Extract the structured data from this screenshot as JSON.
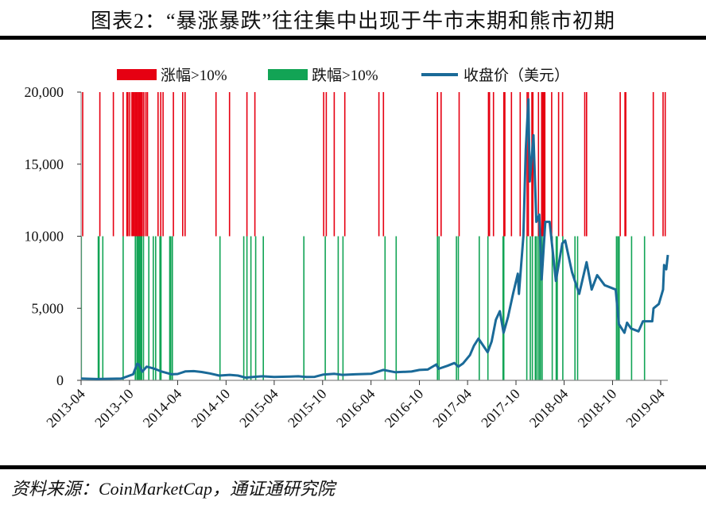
{
  "title": "图表2：“暴涨暴跌”往往集中出现于牛市末期和熊市初期",
  "source": "资料来源：CoinMarketCap，通证通研究院",
  "chart_data": {
    "type": "bar+line",
    "title": "",
    "xlabel": "",
    "ylabel": "",
    "ylim": [
      0,
      20000
    ],
    "xlim": [
      "2013-04-01",
      "2019-05-01"
    ],
    "grid": false,
    "legend_position": "top",
    "y_ticks": [
      "0",
      "5,000",
      "10,000",
      "15,000",
      "20,000"
    ],
    "y_tick_values": [
      0,
      5000,
      10000,
      15000,
      20000
    ],
    "x_ticks": [
      "2013-04",
      "2013-10",
      "2014-04",
      "2014-10",
      "2015-04",
      "2015-10",
      "2016-04",
      "2016-10",
      "2017-04",
      "2017-10",
      "2018-04",
      "2018-10",
      "2019-04"
    ],
    "colors": {
      "rise": "#e60012",
      "fall": "#12a455",
      "price": "#1a6a98"
    },
    "series": [
      {
        "name": "涨幅>10%",
        "type": "event-bar",
        "band": [
          10000,
          20000
        ],
        "dates": [
          "2013-04-07",
          "2013-06-11",
          "2013-08-01",
          "2013-09-07",
          "2013-09-21",
          "2013-09-25",
          "2013-10-02",
          "2013-10-10",
          "2013-10-14",
          "2013-10-18",
          "2013-10-22",
          "2013-10-26",
          "2013-10-30",
          "2013-11-03",
          "2013-11-07",
          "2013-11-11",
          "2013-11-15",
          "2013-11-18",
          "2013-11-24",
          "2013-12-02",
          "2013-12-08",
          "2014-01-17",
          "2014-01-27",
          "2014-02-05",
          "2014-03-16",
          "2014-04-20",
          "2014-04-29",
          "2014-08-24",
          "2014-10-14",
          "2014-12-19",
          "2015-01-18",
          "2015-10-05",
          "2015-10-15",
          "2015-11-14",
          "2015-12-24",
          "2016-05-01",
          "2016-05-18",
          "2016-12-08",
          "2016-12-22",
          "2017-02-28",
          "2017-06-19",
          "2017-06-23",
          "2017-07-08",
          "2017-08-16",
          "2017-08-20",
          "2017-09-14",
          "2017-10-17",
          "2017-11-12",
          "2017-11-17",
          "2017-11-30",
          "2017-12-04",
          "2017-12-25",
          "2018-01-06",
          "2018-01-09",
          "2018-01-12",
          "2018-01-15",
          "2018-01-18",
          "2018-02-13",
          "2018-03-11",
          "2018-03-26",
          "2018-06-18",
          "2018-06-25",
          "2018-10-30",
          "2018-11-17",
          "2018-11-20",
          "2019-03-04",
          "2019-04-10",
          "2019-04-18"
        ]
      },
      {
        "name": "跌幅>10%",
        "type": "event-bar",
        "band": [
          0,
          10000
        ],
        "dates": [
          "2013-04-02",
          "2013-06-05",
          "2013-06-08",
          "2013-06-22",
          "2013-09-07",
          "2013-10-23",
          "2013-10-29",
          "2013-11-01",
          "2013-11-04",
          "2013-11-07",
          "2013-11-10",
          "2013-11-13",
          "2013-11-16",
          "2013-11-23",
          "2013-12-13",
          "2013-12-30",
          "2014-01-08",
          "2014-01-24",
          "2014-01-28",
          "2014-03-02",
          "2014-03-06",
          "2014-03-12",
          "2014-09-08",
          "2014-12-07",
          "2014-12-19",
          "2015-01-03",
          "2015-01-21",
          "2015-02-19",
          "2015-07-22",
          "2015-10-11",
          "2015-11-29",
          "2015-12-17",
          "2016-05-24",
          "2016-07-05",
          "2016-12-08",
          "2016-12-14",
          "2017-02-18",
          "2017-02-25",
          "2017-05-15",
          "2017-06-17",
          "2017-08-13",
          "2017-08-16",
          "2017-11-11",
          "2017-11-24",
          "2017-12-02",
          "2017-12-13",
          "2017-12-17",
          "2017-12-24",
          "2017-12-30",
          "2018-01-02",
          "2018-01-08",
          "2018-02-15",
          "2018-03-02",
          "2018-03-06",
          "2018-03-27",
          "2018-05-12",
          "2018-05-22",
          "2018-10-16",
          "2018-10-21",
          "2018-10-26",
          "2018-12-12",
          "2019-01-30"
        ]
      },
      {
        "name": "收盘价（美元）",
        "type": "line",
        "points": [
          [
            "2013-04-01",
            120
          ],
          [
            "2013-06-01",
            90
          ],
          [
            "2013-09-01",
            125
          ],
          [
            "2013-10-15",
            420
          ],
          [
            "2013-10-30",
            1150
          ],
          [
            "2013-11-05",
            1100
          ],
          [
            "2013-11-18",
            600
          ],
          [
            "2013-12-05",
            950
          ],
          [
            "2014-01-01",
            820
          ],
          [
            "2014-02-01",
            600
          ],
          [
            "2014-03-10",
            420
          ],
          [
            "2014-04-01",
            440
          ],
          [
            "2014-05-01",
            620
          ],
          [
            "2014-06-01",
            640
          ],
          [
            "2014-07-01",
            580
          ],
          [
            "2014-08-01",
            480
          ],
          [
            "2014-09-05",
            330
          ],
          [
            "2014-10-15",
            380
          ],
          [
            "2014-11-15",
            330
          ],
          [
            "2014-12-14",
            190
          ],
          [
            "2015-01-15",
            240
          ],
          [
            "2015-02-15",
            280
          ],
          [
            "2015-04-01",
            235
          ],
          [
            "2015-06-01",
            260
          ],
          [
            "2015-07-01",
            280
          ],
          [
            "2015-08-01",
            230
          ],
          [
            "2015-09-01",
            240
          ],
          [
            "2015-10-04",
            400
          ],
          [
            "2015-11-15",
            450
          ],
          [
            "2015-12-15",
            380
          ],
          [
            "2016-02-01",
            420
          ],
          [
            "2016-04-01",
            450
          ],
          [
            "2016-05-17",
            720
          ],
          [
            "2016-07-02",
            560
          ],
          [
            "2016-09-01",
            610
          ],
          [
            "2016-10-01",
            720
          ],
          [
            "2016-11-01",
            750
          ],
          [
            "2016-12-04",
            1100
          ],
          [
            "2016-12-12",
            800
          ],
          [
            "2017-01-15",
            1010
          ],
          [
            "2017-02-10",
            1200
          ],
          [
            "2017-02-25",
            950
          ],
          [
            "2017-03-15",
            1180
          ],
          [
            "2017-04-10",
            1750
          ],
          [
            "2017-04-25",
            2400
          ],
          [
            "2017-05-12",
            2900
          ],
          [
            "2017-06-16",
            1950
          ],
          [
            "2017-07-01",
            2700
          ],
          [
            "2017-07-17",
            4200
          ],
          [
            "2017-08-01",
            4800
          ],
          [
            "2017-08-15",
            3300
          ],
          [
            "2017-09-01",
            4400
          ],
          [
            "2017-09-20",
            6000
          ],
          [
            "2017-10-08",
            7400
          ],
          [
            "2017-10-12",
            6000
          ],
          [
            "2017-10-29",
            10000
          ],
          [
            "2017-11-07",
            16000
          ],
          [
            "2017-11-17",
            19500
          ],
          [
            "2017-11-22",
            13800
          ],
          [
            "2017-12-06",
            17000
          ],
          [
            "2017-12-17",
            11000
          ],
          [
            "2017-12-28",
            11500
          ],
          [
            "2018-01-06",
            7000
          ],
          [
            "2018-01-20",
            11000
          ],
          [
            "2018-02-05",
            11000
          ],
          [
            "2018-03-01",
            6900
          ],
          [
            "2018-03-25",
            9500
          ],
          [
            "2018-04-05",
            9700
          ],
          [
            "2018-05-01",
            7500
          ],
          [
            "2018-05-28",
            6000
          ],
          [
            "2018-06-25",
            8200
          ],
          [
            "2018-07-14",
            6300
          ],
          [
            "2018-08-04",
            7300
          ],
          [
            "2018-09-01",
            6600
          ],
          [
            "2018-10-13",
            6300
          ],
          [
            "2018-10-25",
            3900
          ],
          [
            "2018-11-15",
            3300
          ],
          [
            "2018-11-25",
            4000
          ],
          [
            "2018-12-10",
            3600
          ],
          [
            "2019-01-07",
            3400
          ],
          [
            "2019-01-24",
            4100
          ],
          [
            "2019-02-28",
            4100
          ],
          [
            "2019-03-05",
            5000
          ],
          [
            "2019-03-25",
            5300
          ],
          [
            "2019-04-10",
            6300
          ],
          [
            "2019-04-14",
            8000
          ],
          [
            "2019-04-22",
            7700
          ],
          [
            "2019-04-28",
            8700
          ]
        ]
      }
    ]
  }
}
